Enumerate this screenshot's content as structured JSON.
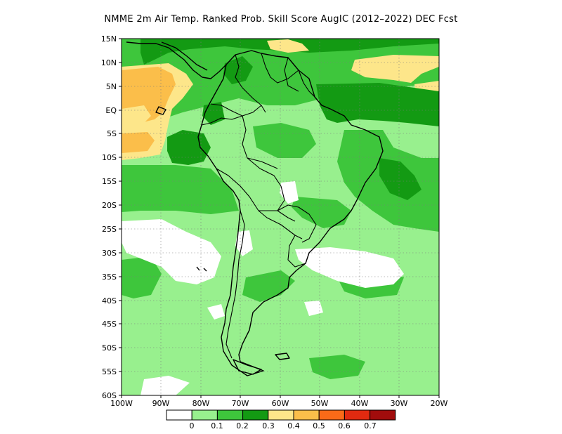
{
  "title": "NMME  2m Air Temp. Ranked Prob. Skill Score AugIC (2012–2022) DEC Fcst",
  "map": {
    "lon_range": [
      -100,
      -20
    ],
    "lat_range": [
      -60,
      15
    ],
    "lat_labels": [
      "15N",
      "10N",
      "5N",
      "EQ",
      "5S",
      "10S",
      "15S",
      "20S",
      "25S",
      "30S",
      "35S",
      "40S",
      "45S",
      "50S",
      "55S",
      "60S"
    ],
    "lon_labels": [
      "100W",
      "90W",
      "80W",
      "70W",
      "60W",
      "50W",
      "40W",
      "30W",
      "20W"
    ],
    "gridlines": "dotted"
  },
  "colorbar": {
    "labels": [
      "0",
      "0.1",
      "0.2",
      "0.3",
      "0.4",
      "0.5",
      "0.6",
      "0.7"
    ],
    "colors": [
      "#ffffff",
      "#98f08e",
      "#3ec63c",
      "#139a13",
      "#fde68a",
      "#fbbe4a",
      "#fa6a18",
      "#e12a10",
      "#a10c0c"
    ]
  }
}
